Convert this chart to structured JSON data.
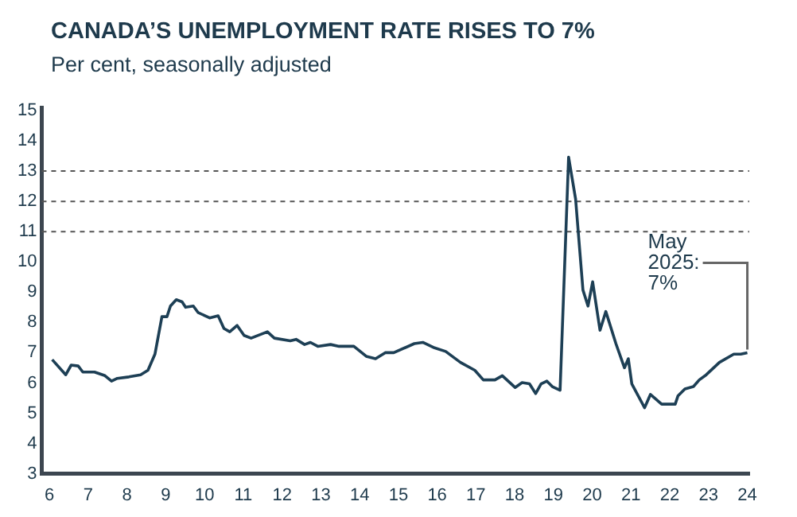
{
  "chart_data": {
    "type": "line",
    "title": "CANADA’S UNEMPLOYMENT RATE RISES TO 7%",
    "subtitle": "Per cent, seasonally adjusted",
    "series": [
      {
        "color": "#1d3f55",
        "x": [
          6.07,
          6.42,
          6.56,
          6.74,
          6.86,
          7.16,
          7.43,
          7.6,
          7.75,
          8.05,
          8.35,
          8.54,
          8.72,
          8.9,
          9.03,
          9.12,
          9.27,
          9.42,
          9.51,
          9.71,
          9.83,
          10.13,
          10.35,
          10.5,
          10.65,
          10.84,
          11.02,
          11.2,
          11.62,
          11.8,
          12.21,
          12.36,
          12.58,
          12.73,
          12.92,
          13.25,
          13.47,
          13.85,
          14.17,
          14.41,
          14.66,
          14.88,
          15.41,
          15.63,
          15.93,
          16.22,
          16.6,
          16.97,
          17.19,
          17.49,
          17.68,
          18.01,
          18.19,
          18.38,
          18.54,
          18.68,
          18.83,
          18.97,
          19.17,
          19.39,
          19.57,
          19.76,
          19.89,
          20.01,
          20.2,
          20.35,
          20.61,
          20.83,
          20.93,
          21.02,
          21.35,
          21.5,
          21.79,
          22.14,
          22.21,
          22.39,
          22.61,
          22.76,
          22.94,
          23.28,
          23.65,
          23.83,
          24.0
        ],
        "values": [
          6.77,
          6.27,
          6.59,
          6.56,
          6.36,
          6.36,
          6.24,
          6.06,
          6.15,
          6.2,
          6.27,
          6.42,
          6.95,
          8.19,
          8.19,
          8.54,
          8.75,
          8.68,
          8.5,
          8.54,
          8.33,
          8.15,
          8.22,
          7.8,
          7.69,
          7.9,
          7.57,
          7.48,
          7.69,
          7.48,
          7.39,
          7.44,
          7.27,
          7.34,
          7.21,
          7.27,
          7.21,
          7.21,
          6.88,
          6.8,
          7.0,
          7.0,
          7.3,
          7.34,
          7.16,
          7.04,
          6.68,
          6.42,
          6.1,
          6.1,
          6.24,
          5.85,
          6.01,
          5.97,
          5.65,
          5.97,
          6.06,
          5.88,
          5.76,
          13.46,
          12.08,
          9.07,
          8.54,
          9.34,
          7.74,
          8.36,
          7.3,
          6.5,
          6.8,
          5.97,
          5.18,
          5.62,
          5.3,
          5.3,
          5.57,
          5.8,
          5.88,
          6.1,
          6.27,
          6.68,
          6.95,
          6.95,
          7.0
        ]
      }
    ],
    "xlim": [
      5.8,
      24.05
    ],
    "xticks": [
      6,
      7,
      8,
      9,
      10,
      11,
      12,
      13,
      14,
      15,
      16,
      17,
      18,
      19,
      20,
      21,
      22,
      23,
      24
    ],
    "ylim": [
      3,
      15.1
    ],
    "yticks": [
      3,
      4,
      5,
      6,
      7,
      8,
      9,
      10,
      11,
      12,
      13,
      14,
      15
    ],
    "ref_lines": [
      {
        "axis": "y",
        "value": 11,
        "line_style": "dashed",
        "color": "#555555"
      },
      {
        "axis": "y",
        "value": 12,
        "line_style": "dashed",
        "color": "#555555"
      },
      {
        "axis": "y",
        "value": 13,
        "line_style": "dashed",
        "color": "#555555"
      }
    ],
    "annotations": [
      {
        "text": "May 2025: 7%",
        "x": 24.0,
        "y": 7.0
      }
    ],
    "grid": false,
    "legend": false,
    "marker": "none",
    "line_style": "solid"
  }
}
